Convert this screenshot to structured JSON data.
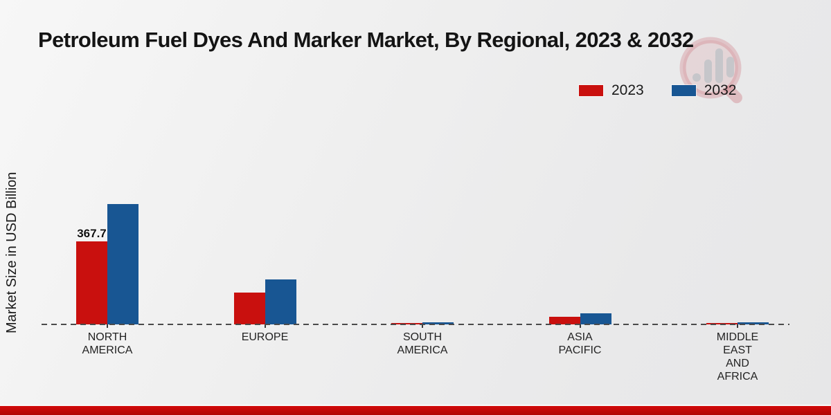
{
  "title": "Petroleum Fuel Dyes And Marker Market, By Regional, 2023 & 2032",
  "ylabel": "Market Size in USD Billion",
  "legend": [
    {
      "label": "2023",
      "color": "#c9100e"
    },
    {
      "label": "2032",
      "color": "#185693"
    }
  ],
  "colors": {
    "series_2023": "#c9100e",
    "series_2032": "#185693",
    "baseline": "#4a4a4a",
    "footer_stripe": "#c20808"
  },
  "chart_data": {
    "type": "bar",
    "categories": [
      "NORTH AMERICA",
      "EUROPE",
      "SOUTH AMERICA",
      "ASIA PACIFIC",
      "MIDDLE EAST AND AFRICA"
    ],
    "category_lines": [
      [
        "NORTH",
        "AMERICA"
      ],
      [
        "EUROPE"
      ],
      [
        "SOUTH",
        "AMERICA"
      ],
      [
        "ASIA",
        "PACIFIC"
      ],
      [
        "MIDDLE",
        "EAST",
        "AND",
        "AFRICA"
      ]
    ],
    "series": [
      {
        "name": "2023",
        "color": "#c9100e",
        "values": [
          367.7,
          141,
          5,
          34,
          6
        ]
      },
      {
        "name": "2032",
        "color": "#185693",
        "values": [
          533,
          199,
          8,
          49,
          9
        ]
      }
    ],
    "annotations": [
      {
        "text": "367.7",
        "series_index": 0,
        "category_index": 0
      }
    ],
    "title": "Petroleum Fuel Dyes And Marker Market, By Regional, 2023 & 2032",
    "xlabel": "",
    "ylabel": "Market Size in USD Billion",
    "ylim": [
      0,
      560
    ],
    "grid": false,
    "legend_position": "top-right",
    "baseline_style": "dashed"
  }
}
